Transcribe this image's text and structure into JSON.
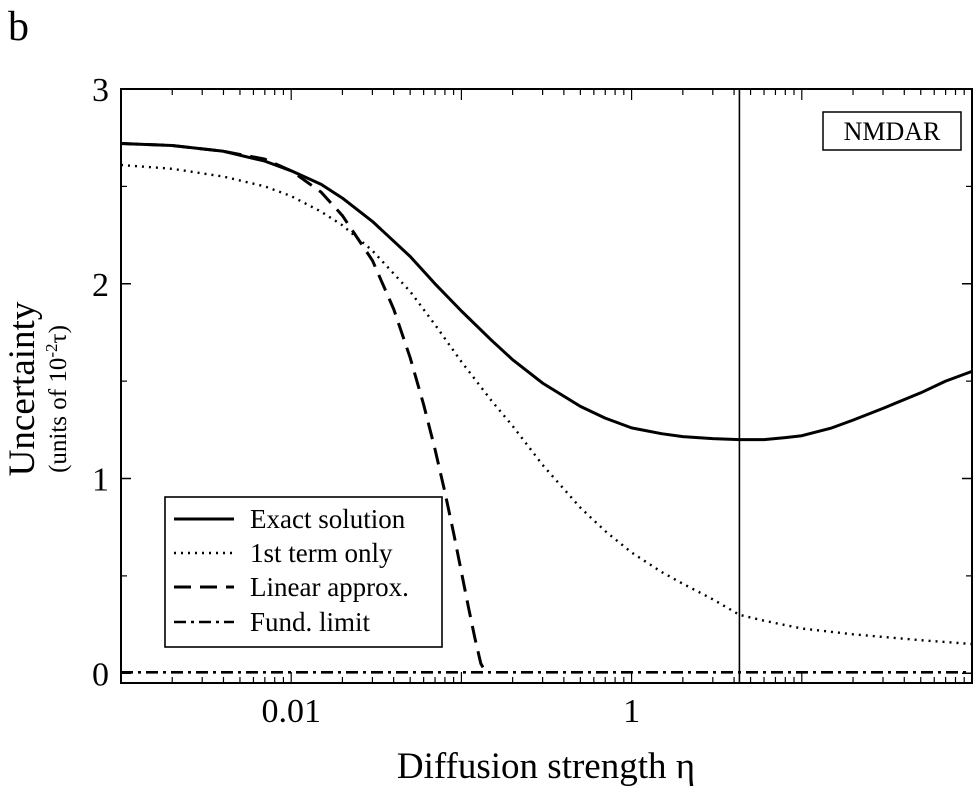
{
  "panel_label": "b",
  "chart_data": {
    "type": "line",
    "title": "",
    "xlabel": "Diffusion strength η",
    "ylabel": "Uncertainty",
    "ylabel_sub_prefix": "(units of 10",
    "ylabel_sub_exp": "-2",
    "ylabel_sub_suffix": "τ)",
    "xscale": "log",
    "xlim": [
      0.001,
      100
    ],
    "ylim": [
      -0.05,
      3
    ],
    "x_ticks": [
      {
        "value": 0.01,
        "label": "0.01"
      },
      {
        "value": 1,
        "label": "1"
      }
    ],
    "y_ticks": [
      {
        "value": 0,
        "label": "0"
      },
      {
        "value": 1,
        "label": "1"
      },
      {
        "value": 2,
        "label": "2"
      },
      {
        "value": 3,
        "label": "3"
      }
    ],
    "grid": false,
    "legend_position": "bottom-left",
    "annotation": {
      "label": "NMDAR",
      "x": 4.3
    },
    "series": [
      {
        "name": "Exact solution",
        "style": "solid",
        "x": [
          0.001,
          0.002,
          0.004,
          0.007,
          0.01,
          0.015,
          0.02,
          0.03,
          0.05,
          0.07,
          0.1,
          0.15,
          0.2,
          0.3,
          0.5,
          0.7,
          1,
          1.5,
          2,
          3,
          4.3,
          6,
          8,
          10,
          15,
          20,
          30,
          50,
          70,
          100
        ],
        "y": [
          2.72,
          2.71,
          2.68,
          2.63,
          2.58,
          2.51,
          2.44,
          2.32,
          2.14,
          2.0,
          1.86,
          1.71,
          1.61,
          1.49,
          1.37,
          1.31,
          1.26,
          1.23,
          1.215,
          1.205,
          1.2,
          1.2,
          1.21,
          1.22,
          1.26,
          1.3,
          1.36,
          1.44,
          1.5,
          1.55
        ]
      },
      {
        "name": "1st term only",
        "style": "dotted",
        "x": [
          0.001,
          0.002,
          0.004,
          0.007,
          0.01,
          0.015,
          0.02,
          0.03,
          0.05,
          0.07,
          0.1,
          0.15,
          0.2,
          0.3,
          0.5,
          0.7,
          1,
          1.5,
          2,
          3,
          4.3,
          6,
          10,
          20,
          50,
          100
        ],
        "y": [
          2.61,
          2.59,
          2.55,
          2.5,
          2.45,
          2.37,
          2.3,
          2.17,
          1.96,
          1.79,
          1.6,
          1.4,
          1.27,
          1.07,
          0.85,
          0.73,
          0.62,
          0.52,
          0.46,
          0.38,
          0.3,
          0.27,
          0.23,
          0.2,
          0.17,
          0.15
        ]
      },
      {
        "name": "Linear approx.",
        "style": "dashed",
        "x": [
          0.001,
          0.002,
          0.004,
          0.007,
          0.01,
          0.015,
          0.02,
          0.03,
          0.04,
          0.05,
          0.06,
          0.07,
          0.08,
          0.09,
          0.1,
          0.11,
          0.12,
          0.13,
          0.14
        ],
        "y": [
          2.72,
          2.71,
          2.68,
          2.64,
          2.58,
          2.47,
          2.35,
          2.12,
          1.87,
          1.62,
          1.38,
          1.15,
          0.93,
          0.72,
          0.52,
          0.34,
          0.18,
          0.05,
          0.0
        ]
      },
      {
        "name": "Fund. limit",
        "style": "dashdot",
        "x": [
          0.001,
          100
        ],
        "y": [
          0.005,
          0.005
        ]
      }
    ]
  }
}
